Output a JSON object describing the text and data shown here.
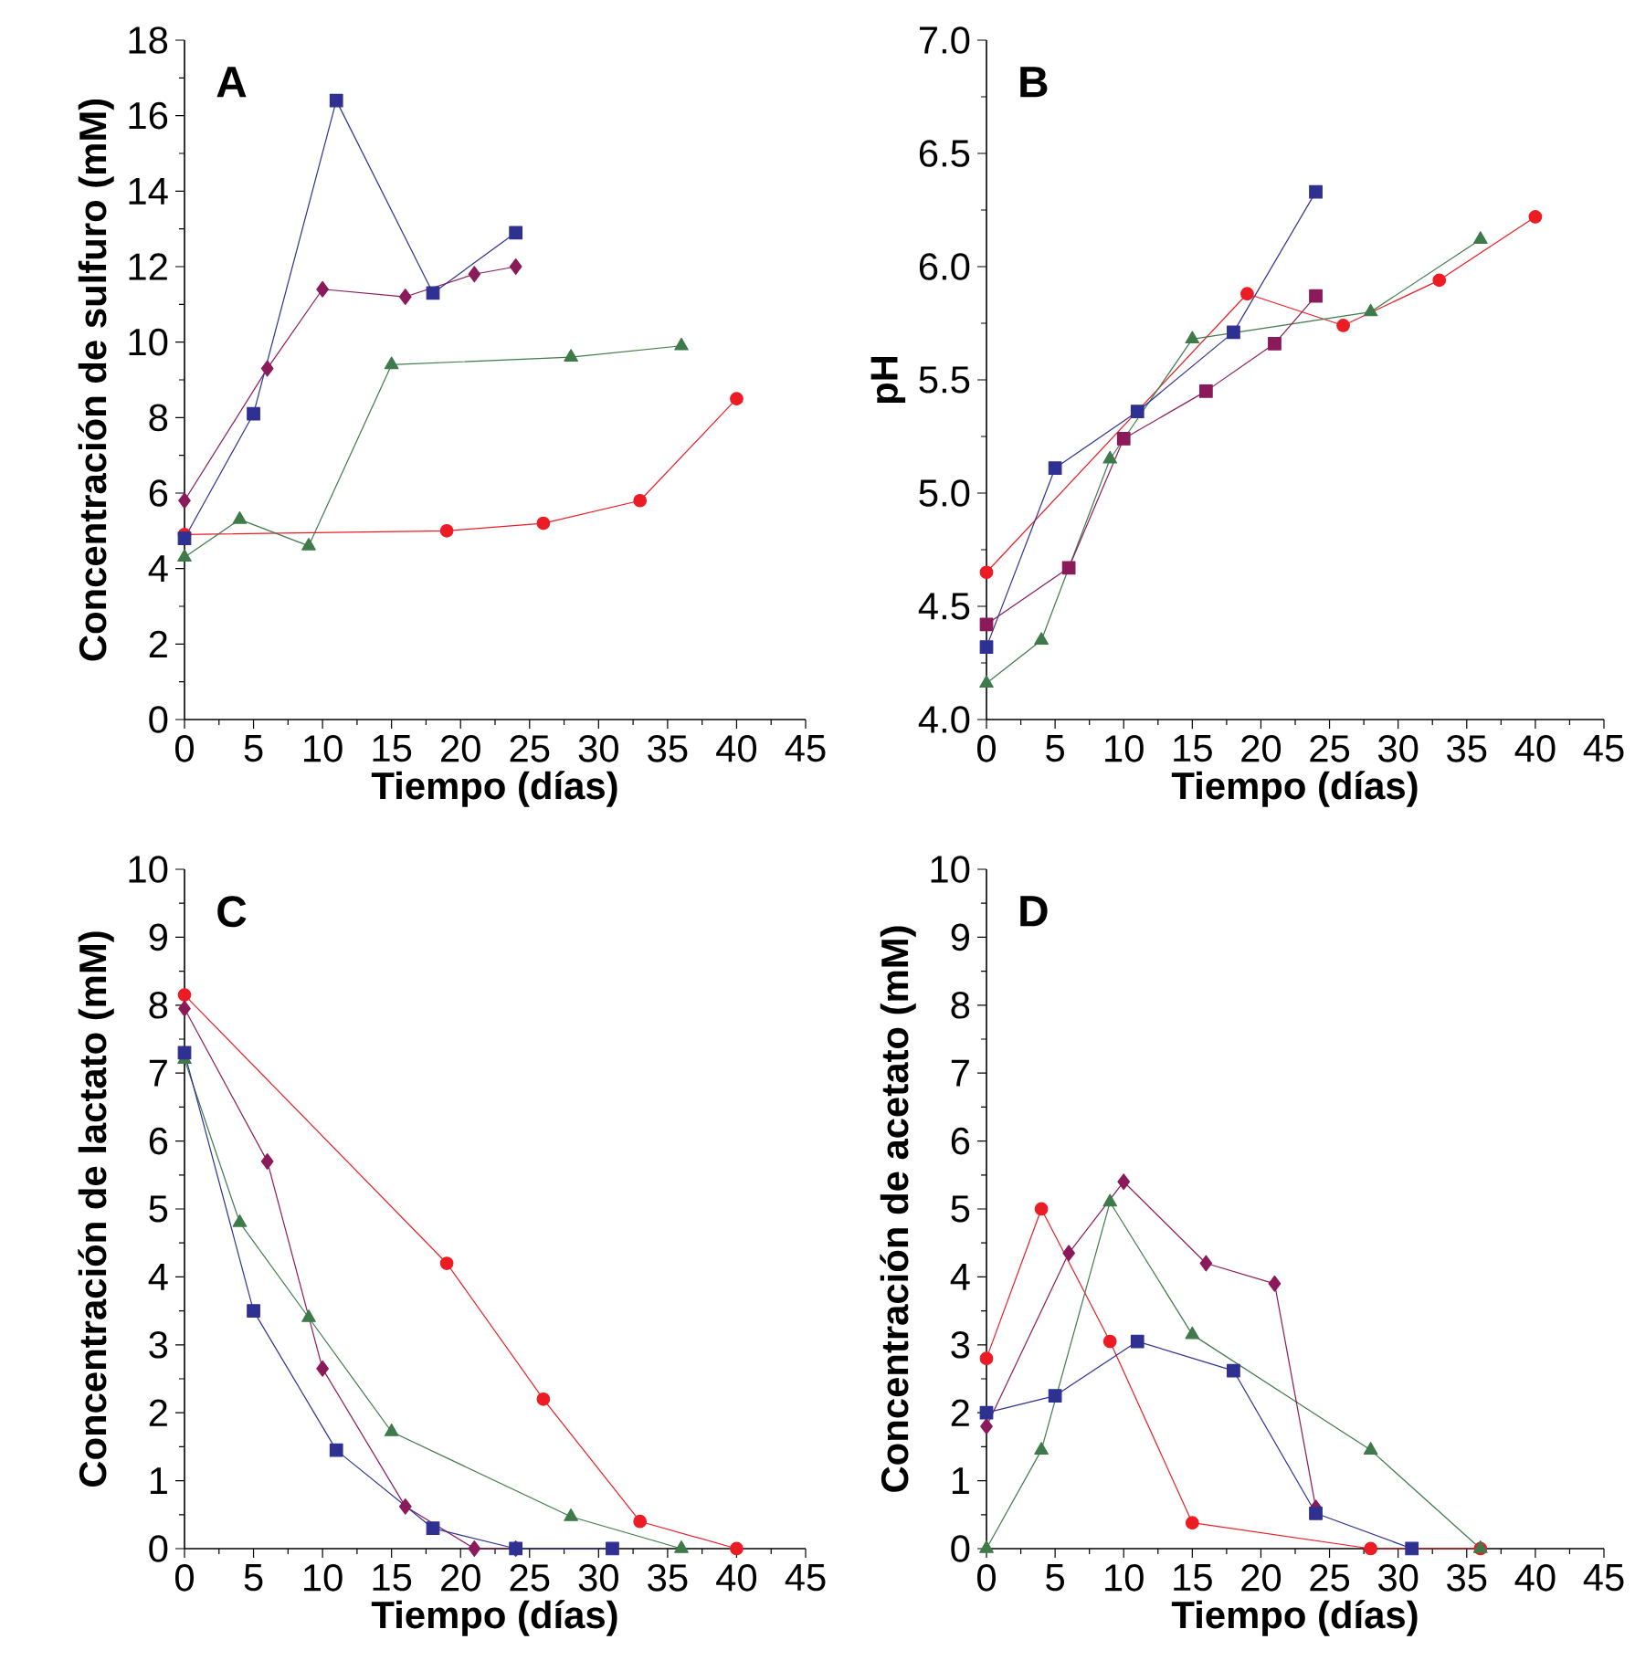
{
  "chart_data": [
    {
      "type": "line",
      "title": "A",
      "xlabel": "Tiempo (días)",
      "ylabel": "Concentración de sulfuro (mM)",
      "xlim": [
        0,
        45
      ],
      "xticks": [
        0,
        5,
        10,
        15,
        20,
        25,
        30,
        35,
        40,
        45
      ],
      "ylim": [
        0,
        18
      ],
      "yticks": [
        0,
        2,
        4,
        6,
        8,
        10,
        12,
        14,
        16,
        18
      ],
      "series": [
        {
          "color": "#2e3192",
          "marker": "square",
          "x": [
            0,
            5,
            11,
            18,
            24
          ],
          "values": [
            4.8,
            8.1,
            16.4,
            11.3,
            12.9
          ]
        },
        {
          "color": "#8b1a5a",
          "marker": "diamond",
          "x": [
            0,
            6,
            10,
            16,
            21,
            24
          ],
          "values": [
            5.8,
            9.3,
            11.4,
            11.2,
            11.8,
            12.0
          ]
        },
        {
          "color": "#3f7a4a",
          "marker": "triangle",
          "x": [
            0,
            4,
            9,
            15,
            28,
            36
          ],
          "values": [
            4.3,
            5.3,
            4.6,
            9.4,
            9.6,
            9.9
          ]
        },
        {
          "color": "#ed1c24",
          "marker": "circle",
          "x": [
            0,
            19,
            26,
            33,
            40
          ],
          "values": [
            4.9,
            5.0,
            5.2,
            5.8,
            8.5
          ]
        }
      ]
    },
    {
      "type": "line",
      "title": "B",
      "xlabel": "Tiempo (días)",
      "ylabel": "pH",
      "xlim": [
        0,
        45
      ],
      "xticks": [
        0,
        5,
        10,
        15,
        20,
        25,
        30,
        35,
        40,
        45
      ],
      "ylim": [
        4,
        7
      ],
      "yticks": [
        {
          "value": 4,
          "label": "4.0"
        },
        {
          "value": 4.5,
          "label": "4.5"
        },
        {
          "value": 5,
          "label": "5.0"
        },
        {
          "value": 5.5,
          "label": "5.5"
        },
        {
          "value": 6,
          "label": "6.0"
        },
        {
          "value": 6.5,
          "label": "6.5"
        },
        {
          "value": 7,
          "label": "7.0"
        }
      ],
      "series": [
        {
          "color": "#2e3192",
          "marker": "square",
          "x": [
            0,
            5,
            11,
            18,
            24
          ],
          "values": [
            4.32,
            5.11,
            5.36,
            5.71,
            6.33
          ]
        },
        {
          "color": "#8b1a5a",
          "marker": "square",
          "x": [
            0,
            6,
            10,
            16,
            21,
            24
          ],
          "values": [
            4.42,
            4.67,
            5.24,
            5.45,
            5.66,
            5.87
          ]
        },
        {
          "color": "#3f7a4a",
          "marker": "triangle",
          "x": [
            0,
            4,
            9,
            15,
            28,
            36
          ],
          "values": [
            4.16,
            4.35,
            5.15,
            5.68,
            5.8,
            6.12
          ]
        },
        {
          "color": "#ed1c24",
          "marker": "circle",
          "x": [
            0,
            19,
            26,
            33,
            40
          ],
          "values": [
            4.65,
            5.88,
            5.74,
            5.94,
            6.22
          ]
        }
      ]
    },
    {
      "type": "line",
      "title": "C",
      "xlabel": "Tiempo (días)",
      "ylabel": "Concentración de lactato (mM)",
      "xlim": [
        0,
        45
      ],
      "xticks": [
        0,
        5,
        10,
        15,
        20,
        25,
        30,
        35,
        40,
        45
      ],
      "ylim": [
        0,
        10
      ],
      "yticks": [
        0,
        1,
        2,
        3,
        4,
        5,
        6,
        7,
        8,
        9,
        10
      ],
      "series": [
        {
          "color": "#2e3192",
          "marker": "square",
          "x": [
            0,
            5,
            11,
            18,
            24,
            31
          ],
          "values": [
            7.3,
            3.5,
            1.45,
            0.3,
            0,
            0
          ]
        },
        {
          "color": "#8b1a5a",
          "marker": "diamond",
          "x": [
            0,
            6,
            10,
            16,
            21,
            24
          ],
          "values": [
            7.95,
            5.7,
            2.65,
            0.62,
            0,
            0
          ]
        },
        {
          "color": "#3f7a4a",
          "marker": "triangle",
          "x": [
            0,
            4,
            9,
            15,
            28,
            36
          ],
          "values": [
            7.2,
            4.8,
            3.4,
            1.72,
            0.47,
            0
          ]
        },
        {
          "color": "#ed1c24",
          "marker": "circle",
          "x": [
            0,
            19,
            26,
            33,
            40
          ],
          "values": [
            8.15,
            4.2,
            2.2,
            0.4,
            0
          ]
        }
      ]
    },
    {
      "type": "line",
      "title": "D",
      "xlabel": "Tiempo (días)",
      "ylabel": "Concentración de acetato (mM)",
      "xlim": [
        0,
        45
      ],
      "xticks": [
        0,
        5,
        10,
        15,
        20,
        25,
        30,
        35,
        40,
        45
      ],
      "ylim": [
        0,
        10
      ],
      "yticks": [
        0,
        1,
        2,
        3,
        4,
        5,
        6,
        7,
        8,
        9,
        10
      ],
      "series": [
        {
          "color": "#2e3192",
          "marker": "square",
          "x": [
            0,
            5,
            11,
            18,
            24,
            31
          ],
          "values": [
            2.0,
            2.25,
            3.05,
            2.62,
            0.52,
            0
          ]
        },
        {
          "color": "#8b1a5a",
          "marker": "diamond",
          "x": [
            0,
            6,
            10,
            16,
            21,
            24
          ],
          "values": [
            1.8,
            4.35,
            5.4,
            4.2,
            3.9,
            0.6
          ]
        },
        {
          "color": "#3f7a4a",
          "marker": "triangle",
          "x": [
            0,
            4,
            9,
            15,
            28,
            36
          ],
          "values": [
            0,
            1.45,
            5.1,
            3.15,
            1.45,
            0
          ]
        },
        {
          "color": "#ed1c24",
          "marker": "circle",
          "x": [
            0,
            4,
            9,
            15,
            28,
            36
          ],
          "values": [
            2.8,
            5.0,
            3.05,
            0.38,
            0,
            0
          ]
        }
      ]
    }
  ]
}
